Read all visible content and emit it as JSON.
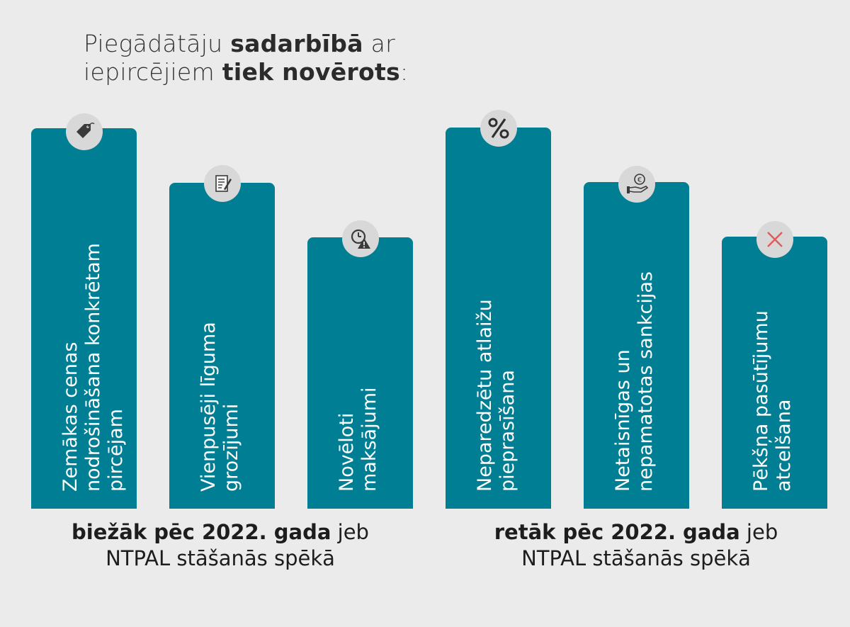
{
  "title": {
    "line1_a": "Piegādātāju ",
    "line1_b": "sadarbībā",
    "line1_c": " ar",
    "line2_a": "iepircējiem ",
    "line2_b": "tiek novērots",
    "line2_c": ":"
  },
  "bars": [
    {
      "lines": [
        "Zemākas cenas",
        "nodrošināšana konkrētam",
        "pircējam"
      ],
      "icon": "price-tag-icon"
    },
    {
      "lines": [
        "Vienpusēji līguma",
        "grozījumi"
      ],
      "icon": "contract-icon"
    },
    {
      "lines": [
        "Novēloti",
        "maksājumi"
      ],
      "icon": "clock-warning-icon"
    },
    {
      "lines": [
        "Neparedzētu atlaižu",
        "pieprasīšana"
      ],
      "icon": "percent-icon"
    },
    {
      "lines": [
        "Netaisnīgas un",
        "nepamatotas sankcijas"
      ],
      "icon": "euro-hand-icon"
    },
    {
      "lines": [
        "Pēkšņa pasūtījumu",
        "atcelšana"
      ],
      "icon": "cross-icon"
    }
  ],
  "footer_left": {
    "bold": "biežāk pēc 2022. gada",
    "rest": " jeb",
    "line2": "NTPAL stāšanās spēkā"
  },
  "footer_right": {
    "bold": "retāk pēc 2022. gada",
    "rest": " jeb",
    "line2": "NTPAL stāšanās spēkā"
  },
  "colors": {
    "bar": "#007e93",
    "background": "#ebebeb",
    "icon_circle": "#d8d8d8",
    "cross": "#e05a5a"
  }
}
